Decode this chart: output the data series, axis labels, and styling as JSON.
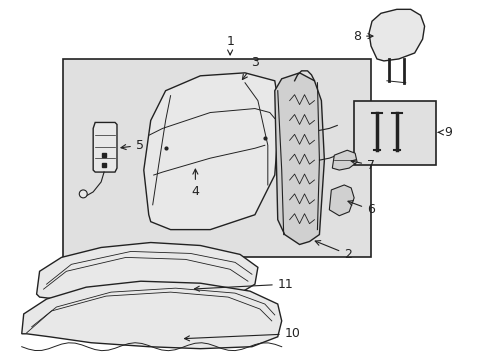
{
  "background_color": "#ffffff",
  "fig_width": 4.89,
  "fig_height": 3.6,
  "dpi": 100,
  "line_color": "#222222",
  "fill_light": "#e8e8e8",
  "fill_gray": "#d0d0d0",
  "fill_box": "#e0e0e0"
}
